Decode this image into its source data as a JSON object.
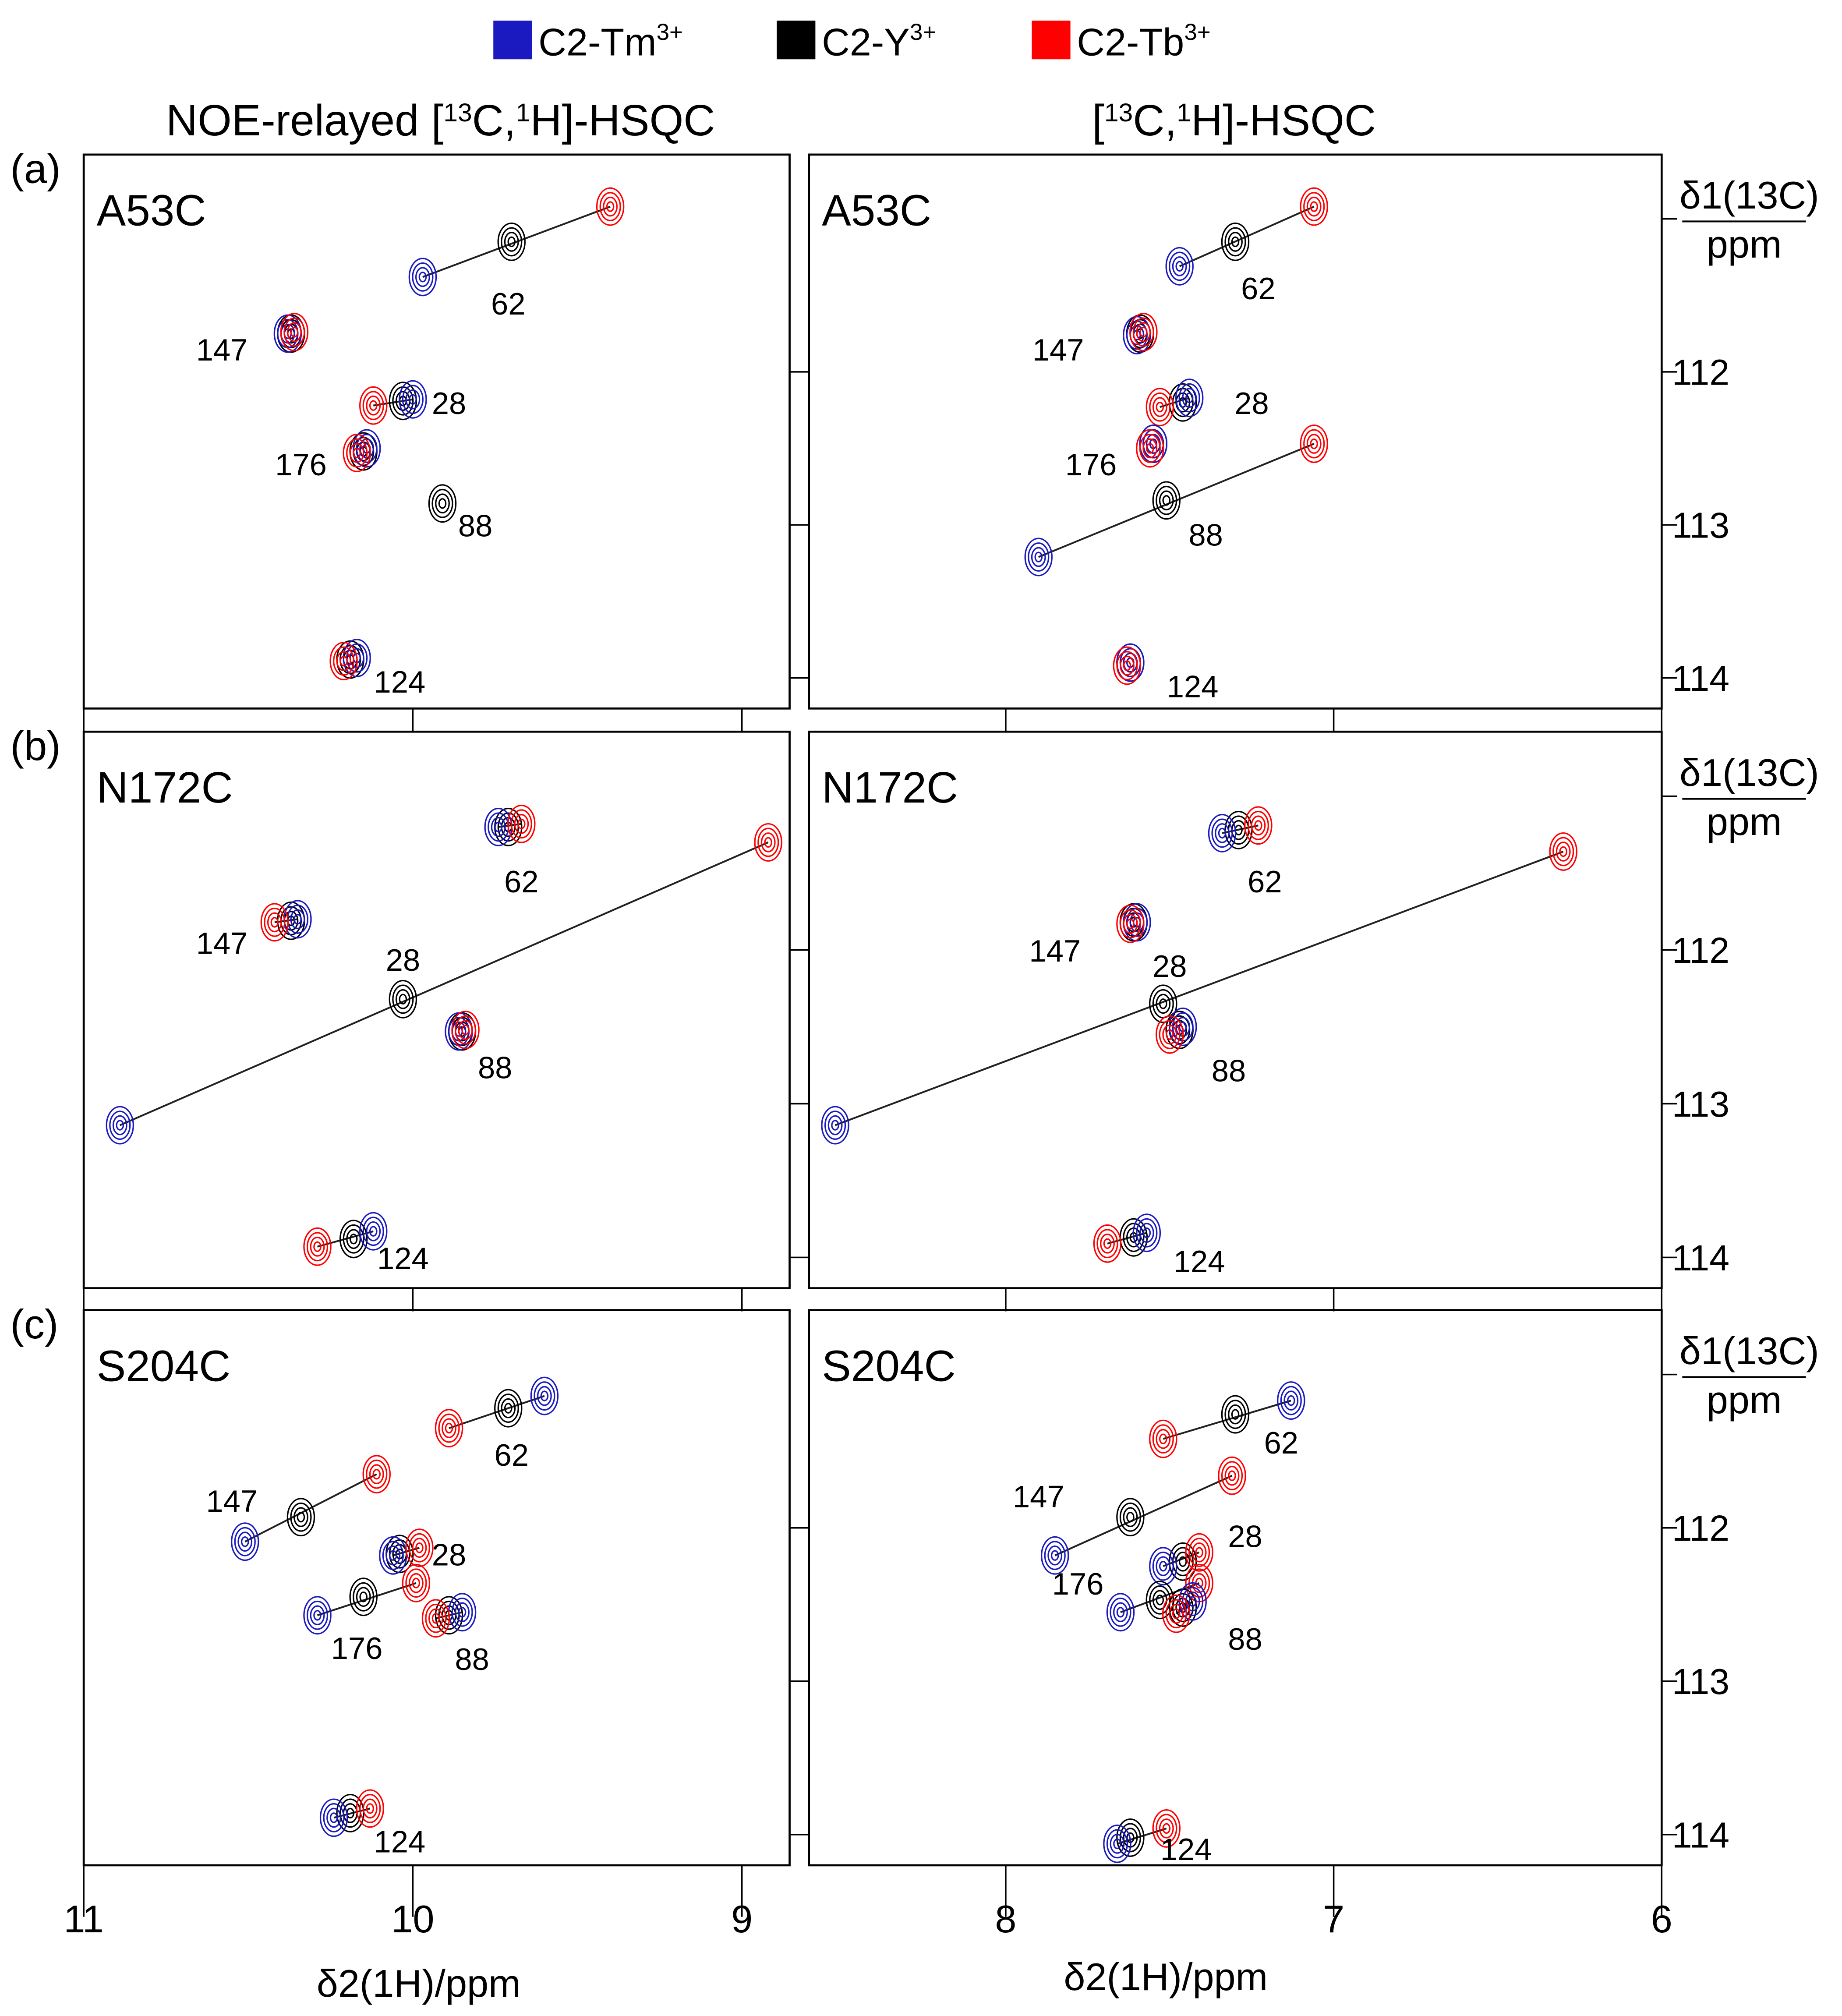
{
  "chart_data": {
    "type": "scatter",
    "subtype": "2D NMR contour overlay",
    "legend": {
      "placement": "top-center",
      "entries": [
        {
          "key": "Tm",
          "label": "C2-Tm",
          "sup": "3+",
          "color": "#1a1ac0"
        },
        {
          "key": "Y",
          "label": "C2-Y",
          "sup": "3+",
          "color": "#000000"
        },
        {
          "key": "Tb",
          "label": "C2-Tb",
          "sup": "3+",
          "color": "#ff0000"
        }
      ]
    },
    "column_titles": [
      "NOE-relayed [13C,1H]-HSQC",
      "[13C,1H]-HSQC"
    ],
    "xlabel": "δ2(1H)/ppm",
    "ylabel_top": "δ1(13C)",
    "ylabel_bottom": "ppm",
    "x_axes": [
      {
        "xlim": [
          11.0,
          8.855
        ],
        "ticks": [
          11,
          10,
          9
        ]
      },
      {
        "xlim": [
          8.6,
          6.0
        ],
        "ticks": [
          8,
          7,
          6
        ]
      }
    ],
    "ylim": [
      110.58,
      114.2
    ],
    "yticks": [
      112,
      113,
      114
    ],
    "rows": [
      {
        "letter": "(a)",
        "mutant": "A53C",
        "panels": [
          {
            "peaks": [
              {
                "res": "62",
                "Tm": [
                  9.97,
                  111.38
                ],
                "Y": [
                  9.7,
                  111.15
                ],
                "Tb": [
                  9.4,
                  110.92
                ],
                "label_at": [
                  9.71,
                  111.55
                ],
                "line": true
              },
              {
                "res": "147",
                "Tm": [
                  10.38,
                  111.75
                ],
                "Y": [
                  10.37,
                  111.75
                ],
                "Tb": [
                  10.36,
                  111.74
                ],
                "label_at": [
                  10.58,
                  111.85
                ],
                "line": false
              },
              {
                "res": "28",
                "Tm": [
                  10.0,
                  112.18
                ],
                "Y": [
                  10.03,
                  112.19
                ],
                "Tb": [
                  10.12,
                  112.22
                ],
                "label_at": [
                  9.89,
                  112.2
                ],
                "line": true
              },
              {
                "res": "176",
                "Tm": [
                  10.14,
                  112.5
                ],
                "Y": [
                  10.15,
                  112.52
                ],
                "Tb": [
                  10.17,
                  112.53
                ],
                "label_at": [
                  10.34,
                  112.6
                ],
                "line": false
              },
              {
                "res": "88",
                "Tm": null,
                "Y": [
                  9.91,
                  112.86
                ],
                "Tb": null,
                "label_at": [
                  9.81,
                  113.0
                ],
                "line": false
              },
              {
                "res": "124",
                "Tm": [
                  10.17,
                  113.87
                ],
                "Y": [
                  10.19,
                  113.88
                ],
                "Tb": [
                  10.21,
                  113.89
                ],
                "label_at": [
                  10.04,
                  114.02
                ],
                "line": false
              }
            ]
          },
          {
            "peaks": [
              {
                "res": "62",
                "Tm": [
                  7.47,
                  111.31
                ],
                "Y": [
                  7.3,
                  111.15
                ],
                "Tb": [
                  7.06,
                  110.92
                ],
                "label_at": [
                  7.23,
                  111.45
                ],
                "line": true
              },
              {
                "res": "147",
                "Tm": [
                  7.6,
                  111.76
                ],
                "Y": [
                  7.59,
                  111.75
                ],
                "Tb": [
                  7.58,
                  111.74
                ],
                "label_at": [
                  7.84,
                  111.85
                ],
                "line": false
              },
              {
                "res": "28",
                "Tm": [
                  7.44,
                  112.17
                ],
                "Y": [
                  7.46,
                  112.2
                ],
                "Tb": [
                  7.53,
                  112.23
                ],
                "label_at": [
                  7.25,
                  112.2
                ],
                "line": true
              },
              {
                "res": "176",
                "Tm": [
                  7.55,
                  112.47
                ],
                "Y": [
                  7.55,
                  112.47
                ],
                "Tb": [
                  7.56,
                  112.5
                ],
                "label_at": [
                  7.74,
                  112.6
                ],
                "line": false
              },
              {
                "res": "88",
                "Tm": [
                  7.9,
                  113.21
                ],
                "Y": [
                  7.51,
                  112.84
                ],
                "Tb": [
                  7.06,
                  112.47
                ],
                "label_at": [
                  7.39,
                  113.06
                ],
                "line": true
              },
              {
                "res": "124",
                "Tm": [
                  7.62,
                  113.9
                ],
                "Y": [
                  7.62,
                  113.9
                ],
                "Tb": [
                  7.63,
                  113.92
                ],
                "label_at": [
                  7.43,
                  114.05
                ],
                "line": false
              }
            ]
          }
        ]
      },
      {
        "letter": "(b)",
        "mutant": "N172C",
        "panels": [
          {
            "peaks": [
              {
                "res": "62",
                "Tm": [
                  9.74,
                  111.2
                ],
                "Y": [
                  9.71,
                  111.2
                ],
                "Tb": [
                  9.67,
                  111.18
                ],
                "label_at": [
                  9.67,
                  111.55
                ],
                "line": true
              },
              {
                "res": "28",
                "Tm": [
                  10.89,
                  113.14
                ],
                "Y": [
                  10.03,
                  112.32
                ],
                "Tb": [
                  8.92,
                  111.3
                ],
                "label_at": [
                  10.03,
                  112.06
                ],
                "line": true
              },
              {
                "res": "147",
                "Tm": [
                  10.35,
                  111.8
                ],
                "Y": [
                  10.37,
                  111.81
                ],
                "Tb": [
                  10.42,
                  111.82
                ],
                "label_at": [
                  10.58,
                  111.95
                ],
                "line": true
              },
              {
                "res": "88",
                "Tm": [
                  9.86,
                  112.53
                ],
                "Y": [
                  9.85,
                  112.53
                ],
                "Tb": [
                  9.84,
                  112.52
                ],
                "label_at": [
                  9.75,
                  112.76
                ],
                "line": false
              },
              {
                "res": "124",
                "Tm": [
                  10.12,
                  113.83
                ],
                "Y": [
                  10.18,
                  113.88
                ],
                "Tb": [
                  10.29,
                  113.93
                ],
                "label_at": [
                  10.03,
                  114.0
                ],
                "line": true
              }
            ]
          },
          {
            "peaks": [
              {
                "res": "62",
                "Tm": [
                  7.34,
                  111.24
                ],
                "Y": [
                  7.29,
                  111.22
                ],
                "Tb": [
                  7.23,
                  111.19
                ],
                "label_at": [
                  7.21,
                  111.55
                ],
                "line": true
              },
              {
                "res": "28",
                "Tm": [
                  8.52,
                  113.14
                ],
                "Y": [
                  7.52,
                  112.35
                ],
                "Tb": [
                  6.3,
                  111.36
                ],
                "label_at": [
                  7.5,
                  112.1
                ],
                "line": true
              },
              {
                "res": "147",
                "Tm": [
                  7.6,
                  111.82
                ],
                "Y": [
                  7.61,
                  111.82
                ],
                "Tb": [
                  7.62,
                  111.83
                ],
                "label_at": [
                  7.85,
                  112.0
                ],
                "line": false
              },
              {
                "res": "88",
                "Tm": [
                  7.46,
                  112.5
                ],
                "Y": [
                  7.47,
                  112.52
                ],
                "Tb": [
                  7.5,
                  112.55
                ],
                "label_at": [
                  7.32,
                  112.78
                ],
                "line": false
              },
              {
                "res": "124",
                "Tm": [
                  7.57,
                  113.84
                ],
                "Y": [
                  7.61,
                  113.87
                ],
                "Tb": [
                  7.69,
                  113.91
                ],
                "label_at": [
                  7.41,
                  114.02
                ],
                "line": true
              }
            ]
          }
        ]
      },
      {
        "letter": "(c)",
        "mutant": "S204C",
        "panels": [
          {
            "peaks": [
              {
                "res": "62",
                "Tm": [
                  9.6,
                  111.14
                ],
                "Y": [
                  9.71,
                  111.22
                ],
                "Tb": [
                  9.89,
                  111.35
                ],
                "label_at": [
                  9.7,
                  111.52
                ],
                "line": true
              },
              {
                "res": "147",
                "Tm": [
                  10.51,
                  112.09
                ],
                "Y": [
                  10.34,
                  111.93
                ],
                "Tb": [
                  10.11,
                  111.65
                ],
                "label_at": [
                  10.55,
                  111.82
                ],
                "line": true
              },
              {
                "res": "28",
                "Tm": [
                  10.06,
                  112.18
                ],
                "Y": [
                  10.04,
                  112.17
                ],
                "Tb": [
                  9.98,
                  112.13
                ],
                "label_at": [
                  9.89,
                  112.17
                ],
                "line": true
              },
              {
                "res": "176",
                "Tm": [
                  10.29,
                  112.57
                ],
                "Y": [
                  10.15,
                  112.45
                ],
                "Tb": [
                  9.99,
                  112.36
                ],
                "label_at": [
                  10.17,
                  112.78
                ],
                "line": true
              },
              {
                "res": "88",
                "Tm": [
                  9.85,
                  112.55
                ],
                "Y": [
                  9.89,
                  112.57
                ],
                "Tb": [
                  9.93,
                  112.59
                ],
                "label_at": [
                  9.82,
                  112.85
                ],
                "line": true
              },
              {
                "res": "124",
                "Tm": [
                  10.24,
                  113.89
                ],
                "Y": [
                  10.19,
                  113.86
                ],
                "Tb": [
                  10.13,
                  113.83
                ],
                "label_at": [
                  10.04,
                  114.04
                ],
                "line": true
              }
            ]
          },
          {
            "peaks": [
              {
                "res": "62",
                "Tm": [
                  7.13,
                  111.17
                ],
                "Y": [
                  7.3,
                  111.26
                ],
                "Tb": [
                  7.52,
                  111.42
                ],
                "label_at": [
                  7.16,
                  111.44
                ],
                "line": true
              },
              {
                "res": "147",
                "Tm": [
                  7.85,
                  112.18
                ],
                "Y": [
                  7.62,
                  111.93
                ],
                "Tb": [
                  7.31,
                  111.66
                ],
                "label_at": [
                  7.9,
                  111.79
                ],
                "line": true
              },
              {
                "res": "28",
                "Tm": [
                  7.52,
                  112.25
                ],
                "Y": [
                  7.46,
                  112.22
                ],
                "Tb": [
                  7.41,
                  112.16
                ],
                "label_at": [
                  7.27,
                  112.05
                ],
                "line": true
              },
              {
                "res": "176",
                "Tm": [
                  7.65,
                  112.55
                ],
                "Y": [
                  7.53,
                  112.47
                ],
                "Tb": [
                  7.41,
                  112.36
                ],
                "label_at": [
                  7.78,
                  112.36
                ],
                "line": true
              },
              {
                "res": "88",
                "Tm": [
                  7.43,
                  112.48
                ],
                "Y": [
                  7.46,
                  112.52
                ],
                "Tb": [
                  7.48,
                  112.56
                ],
                "label_at": [
                  7.27,
                  112.72
                ],
                "line": true
              },
              {
                "res": "124",
                "Tm": [
                  7.66,
                  114.06
                ],
                "Y": [
                  7.62,
                  114.02
                ],
                "Tb": [
                  7.51,
                  113.96
                ],
                "label_at": [
                  7.45,
                  114.09
                ],
                "line": true
              }
            ]
          }
        ]
      }
    ]
  }
}
